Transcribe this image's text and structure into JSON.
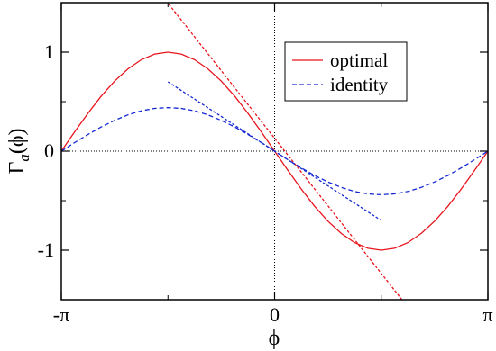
{
  "chart_data": {
    "type": "line",
    "title": "",
    "xlabel": "ϕ",
    "ylabel": {
      "main": "Γ",
      "sub": "a",
      "tail": "(ϕ)"
    },
    "xlim": [
      -3.14159,
      3.14159
    ],
    "ylim": [
      -1.5,
      1.5
    ],
    "xticks": [
      {
        "value": -3.14159,
        "label": "-π"
      },
      {
        "value": 0,
        "label": "0"
      },
      {
        "value": 3.14159,
        "label": "π"
      }
    ],
    "yticks": [
      {
        "value": -1,
        "label": "-1"
      },
      {
        "value": 0,
        "label": "0"
      },
      {
        "value": 1,
        "label": "1"
      }
    ],
    "grid": false,
    "legend_position": "top-right",
    "series": [
      {
        "name": "optimal",
        "color": "#e8141c",
        "dash": "solid",
        "x": [
          -3.1416,
          -2.9452,
          -2.7489,
          -2.5525,
          -2.3562,
          -2.1598,
          -1.9635,
          -1.7671,
          -1.5708,
          -1.3744,
          -1.1781,
          -0.9817,
          -0.7854,
          -0.589,
          -0.3927,
          -0.1963,
          0,
          0.1963,
          0.3927,
          0.589,
          0.7854,
          0.9817,
          1.1781,
          1.3744,
          1.5708,
          1.7671,
          1.9635,
          2.1598,
          2.3562,
          2.5525,
          2.7489,
          2.9452,
          3.1416
        ],
        "y": [
          0,
          0.195,
          0.383,
          0.556,
          0.707,
          0.831,
          0.924,
          0.981,
          1.0,
          0.981,
          0.924,
          0.831,
          0.707,
          0.556,
          0.383,
          0.195,
          0,
          -0.195,
          -0.383,
          -0.556,
          -0.707,
          -0.831,
          -0.924,
          -0.981,
          -1.0,
          -0.981,
          -0.924,
          -0.831,
          -0.707,
          -0.556,
          -0.383,
          -0.195,
          0
        ]
      },
      {
        "name": "identity",
        "color": "#1428d2",
        "dash": "dashed",
        "x": [
          -3.1416,
          -2.9452,
          -2.7489,
          -2.5525,
          -2.3562,
          -2.1598,
          -1.9635,
          -1.7671,
          -1.5708,
          -1.3744,
          -1.1781,
          -0.9817,
          -0.7854,
          -0.589,
          -0.3927,
          -0.1963,
          0,
          0.1963,
          0.3927,
          0.589,
          0.7854,
          0.9817,
          1.1781,
          1.3744,
          1.5708,
          1.7671,
          1.9635,
          2.1598,
          2.3562,
          2.5525,
          2.7489,
          2.9452,
          3.1416
        ],
        "y": [
          0,
          0.086,
          0.169,
          0.245,
          0.311,
          0.366,
          0.407,
          0.432,
          0.44,
          0.432,
          0.407,
          0.366,
          0.311,
          0.245,
          0.169,
          0.086,
          0,
          -0.086,
          -0.169,
          -0.245,
          -0.311,
          -0.366,
          -0.407,
          -0.432,
          -0.44,
          -0.432,
          -0.407,
          -0.366,
          -0.311,
          -0.245,
          -0.169,
          -0.086,
          0
        ]
      },
      {
        "color": "#e8141c",
        "dash": "dotted",
        "x": [
          -1.6,
          1.9
        ],
        "y": [
          1.52,
          -1.52
        ]
      },
      {
        "color": "#1428d2",
        "dash": "dotted",
        "x": [
          -1.57,
          1.57
        ],
        "y": [
          0.7,
          -0.7
        ]
      }
    ],
    "reference_lines": [
      {
        "orientation": "horizontal",
        "value": 0
      },
      {
        "orientation": "vertical",
        "value": 0
      }
    ]
  }
}
